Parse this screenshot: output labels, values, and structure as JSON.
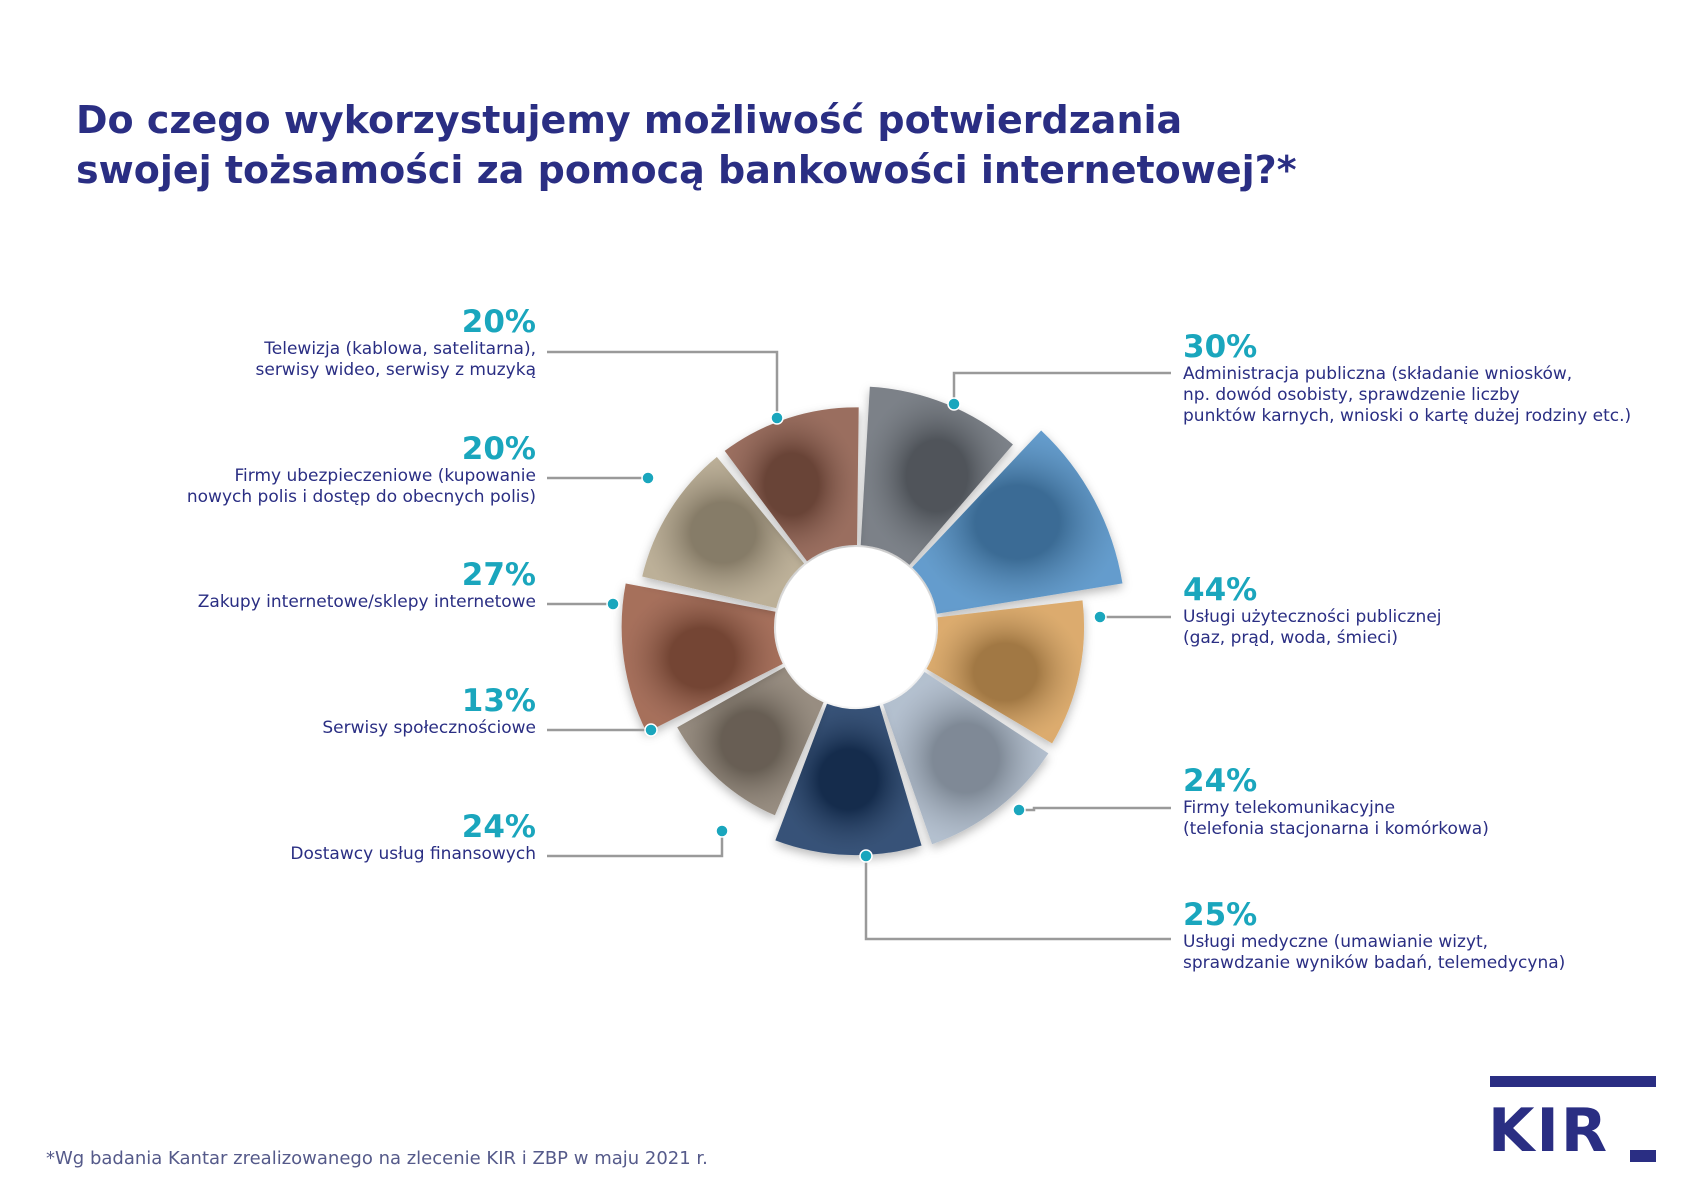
{
  "title": {
    "line1": "Do czego wykorzystujemy możliwość potwierdzania",
    "line2": "swojej tożsamości za pomocą bankowości internetowej?*"
  },
  "chart_data": {
    "type": "pie",
    "title": "Do czego wykorzystujemy możliwość potwierdzania swojej tożsamości za pomocą bankowości internetowej?*",
    "unit": "%",
    "categories": [
      "Administracja publiczna (składanie wniosków, np. dowód osobisty, sprawdzenie liczby punktów karnych, wnioski o kartę dużej rodziny etc.)",
      "Usługi użyteczności publicznej (gaz, prąd, woda, śmieci)",
      "Firmy telekomunikacyjne (telefonia stacjonarna i komórkowa)",
      "Usługi medyczne (umawianie wizyt, sprawdzanie wyników badań, telemedycyna)",
      "Dostawcy usług finansowych",
      "Serwisy społecznościowe",
      "Zakupy internetowe/sklepy internetowe",
      "Firmy ubezpieczeniowe (kupowanie nowych polis i dostęp do obecnych polis)",
      "Telewizja (kablowa, satelitarna), serwisy wideo, serwisy z muzyką"
    ],
    "values": [
      30,
      44,
      24,
      25,
      24,
      13,
      27,
      20,
      20
    ],
    "labels": [
      {
        "pct": "30%",
        "lines": [
          "Administracja publiczna (składanie wniosków,",
          "np. dowód osobisty, sprawdzenie liczby",
          "punktów karnych, wnioski o kartę dużej rodziny etc.)"
        ]
      },
      {
        "pct": "44%",
        "lines": [
          "Usługi użyteczności publicznej",
          "(gaz, prąd, woda, śmieci)"
        ]
      },
      {
        "pct": "24%",
        "lines": [
          "Firmy telekomunikacyjne",
          "(telefonia stacjonarna i komórkowa)"
        ]
      },
      {
        "pct": "25%",
        "lines": [
          "Usługi medyczne (umawianie wizyt,",
          "sprawdzanie wyników badań, telemedycyna)"
        ]
      },
      {
        "pct": "24%",
        "lines": [
          "Dostawcy usług finansowych"
        ]
      },
      {
        "pct": "13%",
        "lines": [
          "Serwisy społecznościowe"
        ]
      },
      {
        "pct": "27%",
        "lines": [
          "Zakupy internetowe/sklepy internetowe"
        ]
      },
      {
        "pct": "20%",
        "lines": [
          "Firmy ubezpieczeniowe (kupowanie",
          "nowych polis i dostęp do obecnych polis)"
        ]
      },
      {
        "pct": "20%",
        "lines": [
          "Telewizja (kablowa, satelitarna),",
          "serwisy wideo, serwisy z muzyką"
        ]
      }
    ],
    "colors": {
      "title": "#2a2e83",
      "percent": "#1aa6bd",
      "dot": "#1aa6bd",
      "leader": "#9a9a9a"
    },
    "slice_colors": [
      "#6b6f78",
      "#4f8fc6",
      "#d7a05a",
      "#a9b7c8",
      "#1b3b66",
      "#8a7e6f",
      "#9a5b45",
      "#b3a58a",
      "#8c5a4a"
    ]
  },
  "footnote": "*Wg badania Kantar zrealizowanego na zlecenie KIR i ZBP w maju 2021 r.",
  "logo": {
    "text": "KIR"
  }
}
